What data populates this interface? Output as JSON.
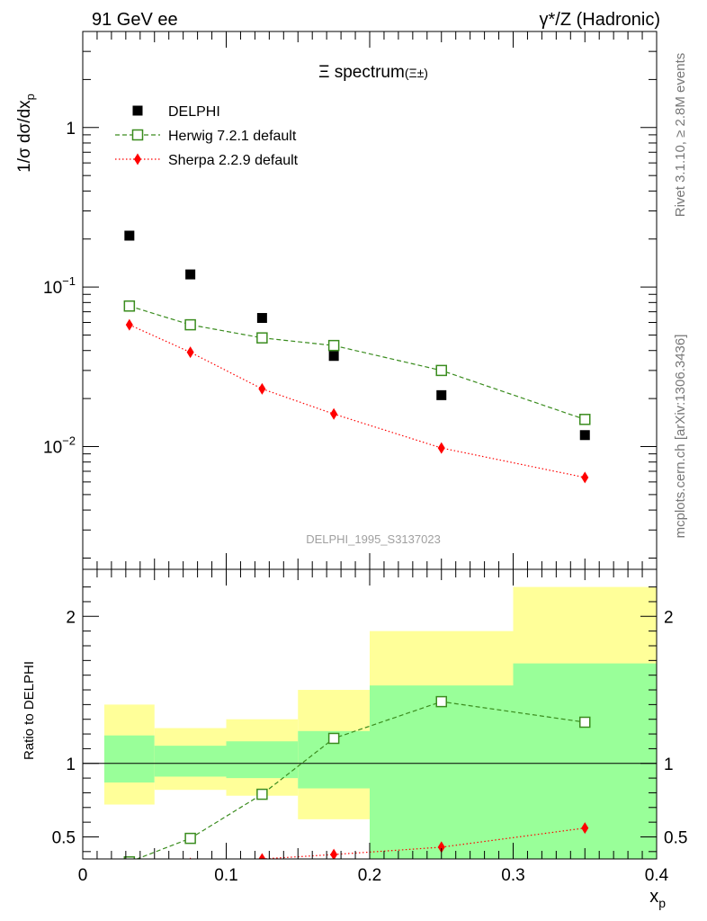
{
  "header": {
    "left": "91 GeV ee",
    "right": "γ*/Z (Hadronic)"
  },
  "side": {
    "rivet": "Rivet 3.1.10, ≥ 2.8M events",
    "site": "mcplots.cern.ch [arXiv:1306.3436]"
  },
  "watermark": "DELPHI_1995_S3137023",
  "chart_data": [
    {
      "type": "scatter",
      "title": "Ξ spectrum",
      "title_suffix": "(Ξ±)",
      "ylabel": "1/σ dσ/dx",
      "ylabel_sub": "p",
      "yscale": "log",
      "ylim": [
        0.0017,
        4.0
      ],
      "xlim": [
        0,
        0.4
      ],
      "y_ticks": [
        {
          "value": 1,
          "mant": "1",
          "exp": ""
        },
        {
          "value": 0.1,
          "mant": "10",
          "exp": "−1"
        },
        {
          "value": 0.01,
          "mant": "10",
          "exp": "−2"
        }
      ],
      "legend_placement": "top-left",
      "series": [
        {
          "name": "DELPHI",
          "style": "data",
          "color": "#000000",
          "x": [
            0.0325,
            0.075,
            0.125,
            0.175,
            0.25,
            0.35
          ],
          "y": [
            0.21,
            0.12,
            0.064,
            0.037,
            0.021,
            0.0118
          ]
        },
        {
          "name": "Herwig 7.2.1 default",
          "style": "open-square-dashed",
          "color": "#3a8c1e",
          "x": [
            0.0325,
            0.075,
            0.125,
            0.175,
            0.25,
            0.35
          ],
          "y": [
            0.076,
            0.058,
            0.048,
            0.043,
            0.03,
            0.0148
          ]
        },
        {
          "name": "Sherpa 2.2.9 default",
          "style": "diamond-dotted",
          "color": "#ff0000",
          "x": [
            0.0325,
            0.075,
            0.125,
            0.175,
            0.25,
            0.35
          ],
          "y": [
            0.058,
            0.039,
            0.023,
            0.016,
            0.0098,
            0.0064
          ]
        }
      ]
    },
    {
      "type": "scatter",
      "ylabel": "Ratio to DELPHI",
      "xlabel": "x",
      "xlabel_sub": "p",
      "xlim": [
        0,
        0.4
      ],
      "ylim": [
        0.35,
        2.32
      ],
      "x_tick_labels": [
        "0",
        "0.1",
        "0.2",
        "0.3",
        "0.4"
      ],
      "y_tick_labels": [
        "0.5",
        "1",
        "2"
      ],
      "y_ticks_value": [
        0.5,
        1,
        2
      ],
      "reference_line": 1,
      "uncertainty_bands": [
        {
          "x_low": 0.015,
          "x_high": 0.05,
          "inner": [
            0.87,
            1.19
          ],
          "outer": [
            0.72,
            1.4
          ]
        },
        {
          "x_low": 0.05,
          "x_high": 0.1,
          "inner": [
            0.91,
            1.12
          ],
          "outer": [
            0.82,
            1.24
          ]
        },
        {
          "x_low": 0.1,
          "x_high": 0.15,
          "inner": [
            0.9,
            1.15
          ],
          "outer": [
            0.78,
            1.3
          ]
        },
        {
          "x_low": 0.15,
          "x_high": 0.2,
          "inner": [
            0.83,
            1.22
          ],
          "outer": [
            0.62,
            1.5
          ]
        },
        {
          "x_low": 0.2,
          "x_high": 0.3,
          "inner": [
            0.35,
            1.53
          ],
          "outer": [
            0.35,
            1.9
          ]
        },
        {
          "x_low": 0.3,
          "x_high": 0.4,
          "inner": [
            0.35,
            1.68
          ],
          "outer": [
            0.35,
            2.2
          ]
        }
      ],
      "series": [
        {
          "name": "Herwig 7.2.1 default",
          "style": "open-square-dashed",
          "color": "#3a8c1e",
          "x": [
            0.0325,
            0.075,
            0.125,
            0.175,
            0.25,
            0.35
          ],
          "y": [
            0.33,
            0.49,
            0.79,
            1.17,
            1.42,
            1.28
          ]
        },
        {
          "name": "Sherpa 2.2.9 default",
          "style": "diamond-dotted",
          "color": "#ff0000",
          "x": [
            0.0325,
            0.075,
            0.125,
            0.175,
            0.25,
            0.35
          ],
          "y": [
            0.27,
            0.32,
            0.35,
            0.38,
            0.43,
            0.56
          ]
        }
      ]
    }
  ]
}
